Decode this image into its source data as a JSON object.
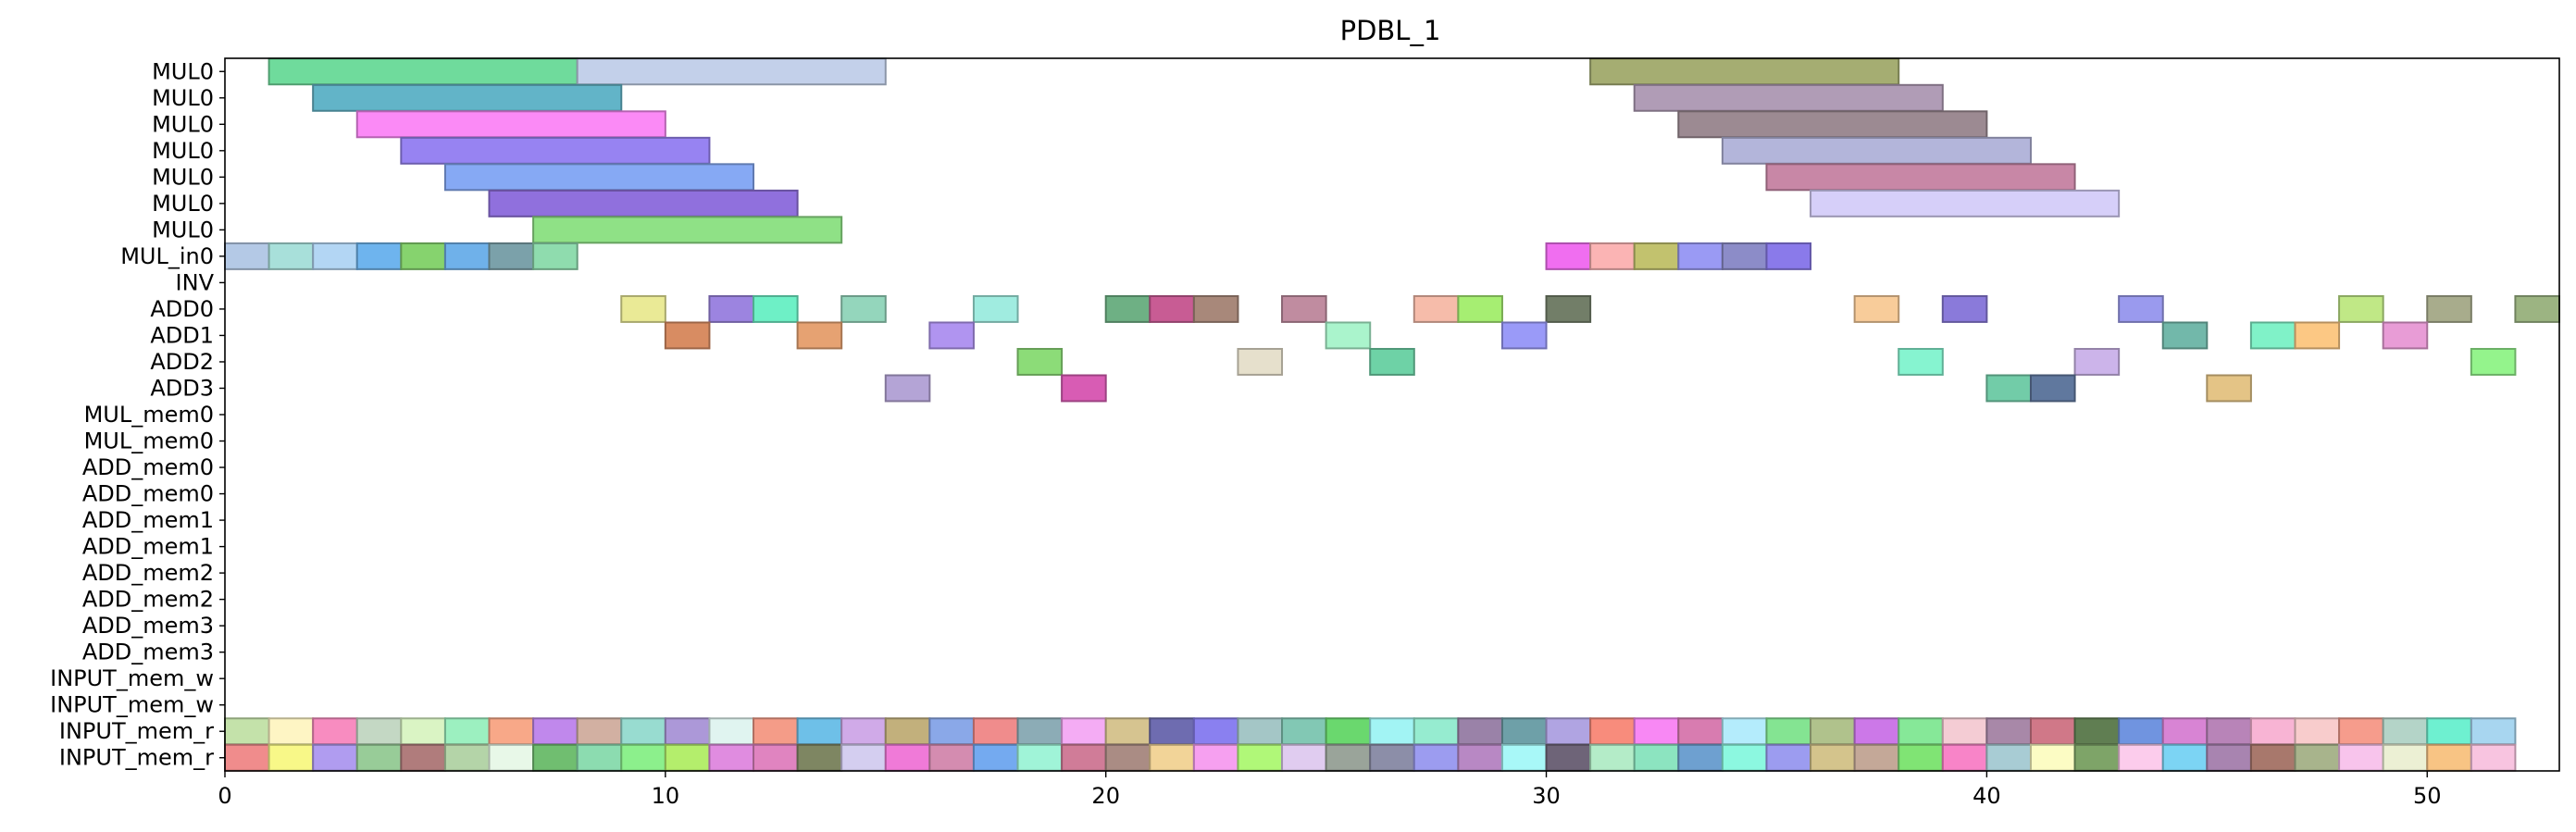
{
  "chart_data": {
    "type": "gantt",
    "title": "PDBL_1",
    "xlim": [
      0,
      53
    ],
    "x_ticks": [
      0,
      10,
      20,
      30,
      40,
      50
    ],
    "rows": [
      "MUL0",
      "MUL0",
      "MUL0",
      "MUL0",
      "MUL0",
      "MUL0",
      "MUL0",
      "MUL_in0",
      "INV",
      "ADD0",
      "ADD1",
      "ADD2",
      "ADD3",
      "MUL_mem0",
      "MUL_mem0",
      "ADD_mem0",
      "ADD_mem0",
      "ADD_mem1",
      "ADD_mem1",
      "ADD_mem2",
      "ADD_mem2",
      "ADD_mem3",
      "ADD_mem3",
      "INPUT_mem_w",
      "INPUT_mem_w",
      "INPUT_mem_r",
      "INPUT_mem_r"
    ],
    "bars": [
      {
        "row": 0,
        "start": 1,
        "end": 8,
        "color": "#6fdb9c"
      },
      {
        "row": 0,
        "start": 8,
        "end": 15,
        "color": "#c3d0ea"
      },
      {
        "row": 0,
        "start": 31,
        "end": 38,
        "color": "#a5ad72"
      },
      {
        "row": 1,
        "start": 2,
        "end": 9,
        "color": "#62b4c8"
      },
      {
        "row": 1,
        "start": 32,
        "end": 39,
        "color": "#b09cb6"
      },
      {
        "row": 2,
        "start": 3,
        "end": 10,
        "color": "#fb8af6"
      },
      {
        "row": 2,
        "start": 33,
        "end": 40,
        "color": "#9c8a92"
      },
      {
        "row": 3,
        "start": 4,
        "end": 11,
        "color": "#9783f2"
      },
      {
        "row": 3,
        "start": 34,
        "end": 41,
        "color": "#b3b5da"
      },
      {
        "row": 4,
        "start": 5,
        "end": 12,
        "color": "#86a9f4"
      },
      {
        "row": 4,
        "start": 35,
        "end": 42,
        "color": "#c887a6"
      },
      {
        "row": 5,
        "start": 6,
        "end": 13,
        "color": "#9070dd"
      },
      {
        "row": 5,
        "start": 36,
        "end": 43,
        "color": "#d6cff9"
      },
      {
        "row": 6,
        "start": 7,
        "end": 14,
        "color": "#8fe186"
      },
      {
        "row": 7,
        "start": 0,
        "end": 1,
        "color": "#b4c9e6"
      },
      {
        "row": 7,
        "start": 1,
        "end": 2,
        "color": "#a8e0da"
      },
      {
        "row": 7,
        "start": 2,
        "end": 3,
        "color": "#b3d6f4"
      },
      {
        "row": 7,
        "start": 3,
        "end": 4,
        "color": "#6eb4ee"
      },
      {
        "row": 7,
        "start": 4,
        "end": 5,
        "color": "#86d36e"
      },
      {
        "row": 7,
        "start": 5,
        "end": 6,
        "color": "#6fb1ea"
      },
      {
        "row": 7,
        "start": 6,
        "end": 7,
        "color": "#7ba1aa"
      },
      {
        "row": 7,
        "start": 7,
        "end": 8,
        "color": "#8fdcae"
      },
      {
        "row": 7,
        "start": 30,
        "end": 31,
        "color": "#f06ef0"
      },
      {
        "row": 7,
        "start": 31,
        "end": 32,
        "color": "#fbb4b4"
      },
      {
        "row": 7,
        "start": 32,
        "end": 33,
        "color": "#c2c26e"
      },
      {
        "row": 7,
        "start": 33,
        "end": 34,
        "color": "#9a9af4"
      },
      {
        "row": 7,
        "start": 34,
        "end": 35,
        "color": "#8c8cc8"
      },
      {
        "row": 7,
        "start": 35,
        "end": 36,
        "color": "#8a7aea"
      },
      {
        "row": 9,
        "start": 9,
        "end": 10,
        "color": "#eaea96"
      },
      {
        "row": 9,
        "start": 11,
        "end": 12,
        "color": "#9c84e0"
      },
      {
        "row": 9,
        "start": 12,
        "end": 13,
        "color": "#6ef0c6"
      },
      {
        "row": 9,
        "start": 14,
        "end": 15,
        "color": "#94d6bc"
      },
      {
        "row": 9,
        "start": 17,
        "end": 18,
        "color": "#a0ece0"
      },
      {
        "row": 9,
        "start": 20,
        "end": 21,
        "color": "#6eb084"
      },
      {
        "row": 9,
        "start": 21,
        "end": 22,
        "color": "#c85c94"
      },
      {
        "row": 9,
        "start": 22,
        "end": 23,
        "color": "#a8887a"
      },
      {
        "row": 9,
        "start": 24,
        "end": 25,
        "color": "#c08ca0"
      },
      {
        "row": 9,
        "start": 27,
        "end": 28,
        "color": "#f6bcaa"
      },
      {
        "row": 9,
        "start": 28,
        "end": 29,
        "color": "#a6ee72"
      },
      {
        "row": 9,
        "start": 30,
        "end": 31,
        "color": "#727e68"
      },
      {
        "row": 9,
        "start": 37,
        "end": 38,
        "color": "#f8cc9a"
      },
      {
        "row": 9,
        "start": 39,
        "end": 40,
        "color": "#8a7ada"
      },
      {
        "row": 9,
        "start": 43,
        "end": 44,
        "color": "#9a9aee"
      },
      {
        "row": 9,
        "start": 48,
        "end": 49,
        "color": "#c0e886"
      },
      {
        "row": 9,
        "start": 50,
        "end": 51,
        "color": "#a8ac8c"
      },
      {
        "row": 9,
        "start": 52,
        "end": 53,
        "color": "#9cb482"
      },
      {
        "row": 10,
        "start": 10,
        "end": 11,
        "color": "#d88c62"
      },
      {
        "row": 10,
        "start": 13,
        "end": 14,
        "color": "#e6a272"
      },
      {
        "row": 10,
        "start": 16,
        "end": 17,
        "color": "#b094f0"
      },
      {
        "row": 10,
        "start": 25,
        "end": 26,
        "color": "#aaf4cc"
      },
      {
        "row": 10,
        "start": 29,
        "end": 30,
        "color": "#9a9af8"
      },
      {
        "row": 10,
        "start": 44,
        "end": 45,
        "color": "#72b8aa"
      },
      {
        "row": 10,
        "start": 46,
        "end": 47,
        "color": "#80f2c8"
      },
      {
        "row": 10,
        "start": 47,
        "end": 48,
        "color": "#fcc884"
      },
      {
        "row": 10,
        "start": 49,
        "end": 50,
        "color": "#e89cd6"
      },
      {
        "row": 11,
        "start": 18,
        "end": 19,
        "color": "#8cdc78"
      },
      {
        "row": 11,
        "start": 23,
        "end": 24,
        "color": "#e6e0cc"
      },
      {
        "row": 11,
        "start": 26,
        "end": 27,
        "color": "#6ed2a6"
      },
      {
        "row": 11,
        "start": 38,
        "end": 39,
        "color": "#86f4d0"
      },
      {
        "row": 11,
        "start": 42,
        "end": 43,
        "color": "#ccb4ea"
      },
      {
        "row": 11,
        "start": 51,
        "end": 52,
        "color": "#94f48c"
      },
      {
        "row": 12,
        "start": 15,
        "end": 16,
        "color": "#b4a4d6"
      },
      {
        "row": 12,
        "start": 19,
        "end": 20,
        "color": "#d85cb4"
      },
      {
        "row": 12,
        "start": 40,
        "end": 41,
        "color": "#72cca8"
      },
      {
        "row": 12,
        "start": 41,
        "end": 42,
        "color": "#60789e"
      },
      {
        "row": 12,
        "start": 45,
        "end": 46,
        "color": "#e4c486"
      }
    ],
    "input_mem_r_colors": [
      [
        "#c4e2aa",
        "#fef5c4",
        "#f88cc0",
        "#c4d8c4",
        "#daf4c4",
        "#9cf0c0",
        "#f8a888",
        "#c088ec",
        "#d2b0a2",
        "#98dcd0",
        "#ac98d8",
        "#e0f4f0",
        "#f49c88",
        "#6ec0e8",
        "#d0aae8",
        "#c2b07c",
        "#8aa8e8",
        "#f08c8c",
        "#8cacb6",
        "#f4acf4",
        "#d6c490",
        "#6e6cb0",
        "#8a80f0",
        "#a4c6c6",
        "#82c8b4",
        "#6ad86e",
        "#a2f4f4",
        "#96ecd0",
        "#9a82a8",
        "#6ea0a8",
        "#b0a4e2",
        "#f88c7c",
        "#f888f4",
        "#d87cb0",
        "#b4ecfc",
        "#84e492",
        "#b0c28c",
        "#cc78e8",
        "#86e898",
        "#f4ccd4",
        "#a888a8",
        "#d07888",
        "#607e52",
        "#7094e0",
        "#d884d4",
        "#b884b8",
        "#f8b4d4",
        "#f8cccc",
        "#f69c8c",
        "#b4d4c8",
        "#6ef0d0",
        "#a8d6f0"
      ],
      [
        "#f08c8c",
        "#f8f888",
        "#b09cf0",
        "#98cc98",
        "#b07c7c",
        "#b4d4a8",
        "#e8f8e8",
        "#70be70",
        "#8cdcb0",
        "#8cf08c",
        "#b4ee6c",
        "#e08ce0",
        "#e084c0",
        "#7e8662",
        "#d4cef0",
        "#f07ad8",
        "#d48cb0",
        "#74aaf0",
        "#a0f4d8",
        "#d07c98",
        "#aa8c84",
        "#f2d498",
        "#f6a0f0",
        "#b0f878",
        "#e0ccf0",
        "#9aa49a",
        "#8c8ea8",
        "#9c9cf0",
        "#b888c4",
        "#a8f8f8",
        "#6e6478",
        "#b4ecc8",
        "#8ce4c0",
        "#6ea0d0",
        "#8cf8e0",
        "#9c9cf0",
        "#d4c48c",
        "#c4a898",
        "#80e474",
        "#f884c8",
        "#a8ccd4",
        "#fcfcc4",
        "#7ea468",
        "#fcccec",
        "#7cd4f4",
        "#a884b0",
        "#a8786c",
        "#a8b48c",
        "#f8c4ec",
        "#ecf0d4",
        "#f8c484",
        "#f8c4e0"
      ]
    ]
  }
}
